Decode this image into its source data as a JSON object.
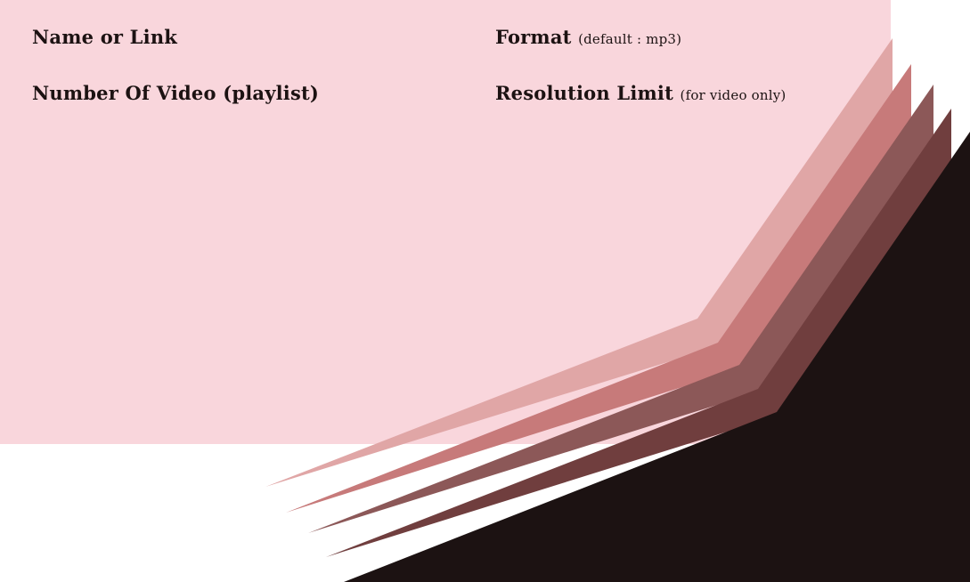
{
  "form": {
    "name_label": "Name or Link",
    "format_label": "Format",
    "format_hint": "(default : mp3)",
    "count_label": "Number Of Video (playlist)",
    "resolution_label": "Resolution Limit",
    "resolution_hint": "(for video only)"
  },
  "colors": {
    "panel_background": "#f9d6dc",
    "text": "#1c1212",
    "stripes": [
      "#e0a6a6",
      "#c77a7a",
      "#8c5858",
      "#703e3e",
      "#1c1212"
    ]
  }
}
